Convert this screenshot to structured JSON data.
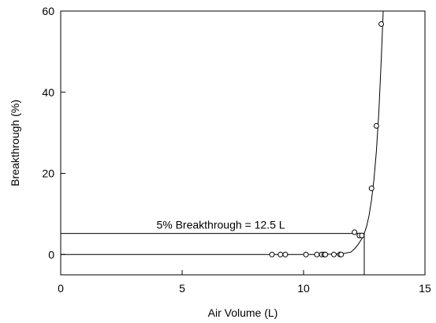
{
  "chart_data": {
    "type": "scatter",
    "xlabel": "Air Volume (L)",
    "ylabel": "Breakthrough (%)",
    "xlim": [
      0,
      15
    ],
    "ylim": [
      -5,
      60
    ],
    "xticks": [
      0,
      5,
      10,
      15
    ],
    "yticks": [
      0,
      20,
      40,
      60
    ],
    "xtick_labels": [
      "0",
      "5",
      "10",
      "15"
    ],
    "ytick_labels": [
      "0",
      "20",
      "40",
      "60"
    ],
    "grid": false,
    "series": [
      {
        "marker": "open-circle",
        "x": [
          8.7,
          9.05,
          9.25,
          10.1,
          10.55,
          10.75,
          10.85,
          10.9,
          11.25,
          11.5,
          11.55,
          12.1,
          12.3,
          12.4,
          12.8,
          13.0,
          13.2
        ],
        "y": [
          0,
          0,
          0,
          0,
          0,
          0,
          0,
          0,
          0,
          0,
          0,
          5.5,
          4.7,
          4.7,
          16.3,
          31.7,
          56.8
        ]
      }
    ],
    "fit_curve": {
      "x": [
        0,
        10.5,
        11.3,
        11.7,
        11.95,
        12.1,
        12.25,
        12.4,
        12.5,
        12.6,
        12.7,
        12.8,
        12.9,
        13.0,
        13.1,
        13.2,
        13.28
      ],
      "y": [
        0,
        0,
        0.1,
        0.3,
        0.6,
        1.4,
        2.5,
        3.9,
        5.2,
        7.0,
        9.7,
        13.5,
        18.5,
        25.5,
        35.0,
        48.0,
        60.0
      ]
    },
    "reference_lines": {
      "breakthrough_percent": 5.2,
      "volume": 12.5
    },
    "annotation": "5% Breakthrough = 12.5 L"
  }
}
